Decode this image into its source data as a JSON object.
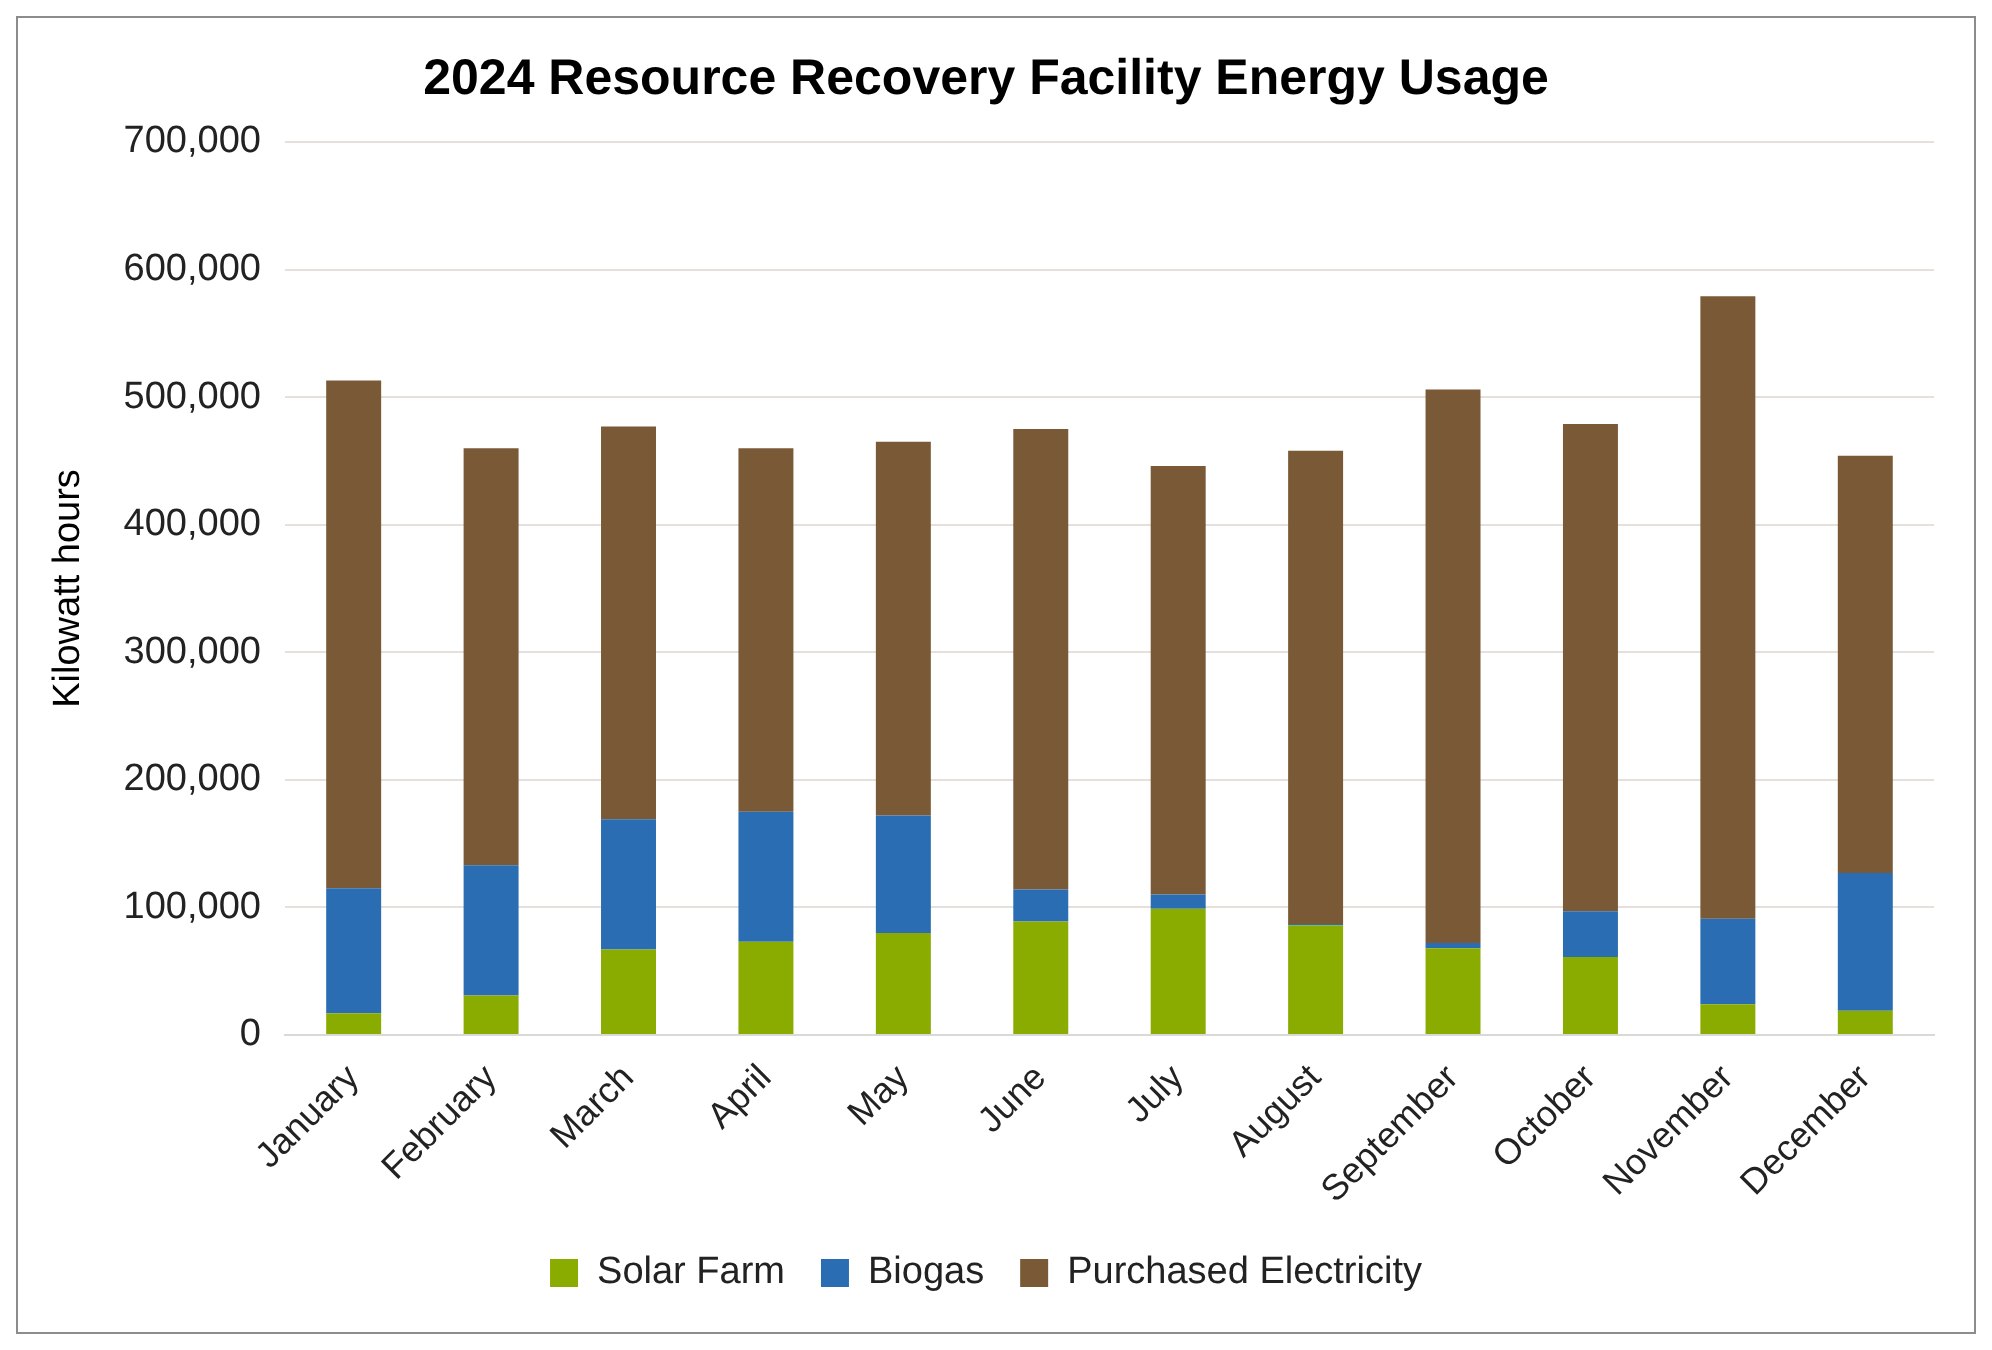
{
  "chart_data": {
    "type": "bar",
    "title": "2024 Resource Recovery Facility Energy Usage",
    "ylabel": "Kilowatt hours",
    "categories": [
      "January",
      "February",
      "March",
      "April",
      "May",
      "June",
      "July",
      "August",
      "September",
      "October",
      "November",
      "December"
    ],
    "stacked": true,
    "series": [
      {
        "name": "Solar Farm",
        "color": "#8aab00",
        "values": [
          17000,
          31000,
          67000,
          73000,
          80000,
          89000,
          99000,
          86000,
          68000,
          61000,
          24000,
          19000
        ]
      },
      {
        "name": "Biogas",
        "color": "#2a6db2",
        "values": [
          98000,
          102000,
          102000,
          102000,
          92000,
          25000,
          11000,
          1000,
          4000,
          36000,
          67000,
          108000
        ]
      },
      {
        "name": "Purchased Electricity",
        "color": "#7a5936",
        "values": [
          398000,
          327000,
          308000,
          285000,
          293000,
          361000,
          336000,
          371000,
          434000,
          382000,
          488000,
          327000
        ]
      }
    ],
    "ylim": [
      0,
      700000
    ],
    "yticks": [
      0,
      {
        "value": 100000,
        "label": "100,000"
      },
      {
        "value": 200000,
        "label": "200,000"
      },
      {
        "value": 300000,
        "label": "300,000"
      },
      {
        "value": 400000,
        "label": "400,000"
      },
      {
        "value": 500000,
        "label": "500,000"
      },
      {
        "value": 600000,
        "label": "600,000"
      },
      {
        "value": 700000,
        "label": "700,000"
      }
    ],
    "grid": "y",
    "legend": "bottom"
  }
}
